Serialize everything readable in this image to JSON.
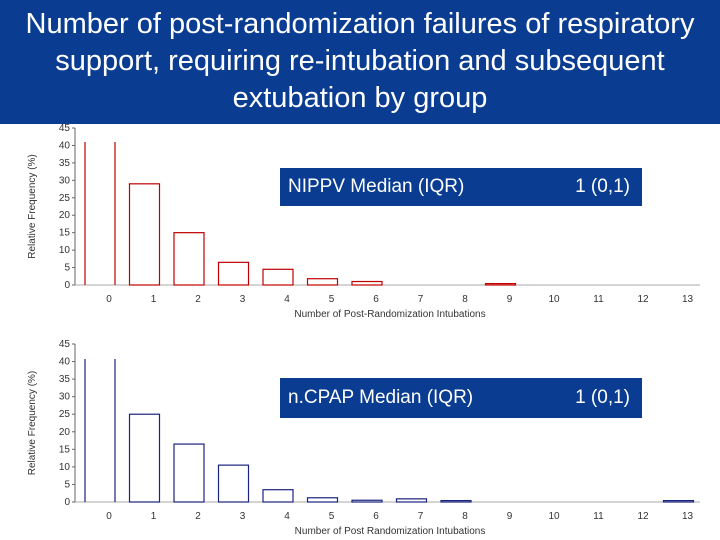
{
  "title": "Number of post-randomization failures of respiratory support, requiring re-intubation and subsequent extubation by group",
  "colors": {
    "title_bg": "#0a3d91",
    "title_text": "#ffffff",
    "nippv_bar": "#c00000",
    "ncpap_bar": "#1a237e"
  },
  "median_boxes": [
    {
      "label": "NIPPV Median (IQR)",
      "value": "1 (0,1)"
    },
    {
      "label": "n.CPAP Median (IQR)",
      "value": "1 (0,1)"
    }
  ],
  "chart_data": [
    {
      "type": "bar",
      "categories": [
        "0",
        "1",
        "2",
        "3",
        "4",
        "5",
        "6",
        "7",
        "8",
        "9",
        "10",
        "11",
        "12",
        "13"
      ],
      "values": [
        41,
        29,
        15,
        6.5,
        4.5,
        1.8,
        1.0,
        0,
        0,
        0.4,
        0,
        0,
        0,
        0
      ],
      "ylabel": "Relative Frequency (%)",
      "xlabel": "Number of Post-Randomization Intubations",
      "ylim": [
        0,
        45
      ],
      "yticks": [
        "0",
        "5",
        "10",
        "15",
        "20",
        "25",
        "30",
        "35",
        "40",
        "45"
      ],
      "clipped": true
    },
    {
      "type": "bar",
      "categories": [
        "0",
        "1",
        "2",
        "3",
        "4",
        "5",
        "6",
        "7",
        "8",
        "9",
        "10",
        "11",
        "12",
        "13"
      ],
      "values": [
        41,
        25,
        16.5,
        10.5,
        3.5,
        1.2,
        0.5,
        0.9,
        0.4,
        0,
        0,
        0,
        0,
        0.4
      ],
      "ylabel": "Relative Frequency (%)",
      "xlabel": "Number of Post Randomization Intubations",
      "ylim": [
        0,
        45
      ],
      "yticks": [
        "0",
        "5",
        "10",
        "15",
        "20",
        "25",
        "30",
        "35",
        "40",
        "45"
      ],
      "clipped": true
    }
  ]
}
